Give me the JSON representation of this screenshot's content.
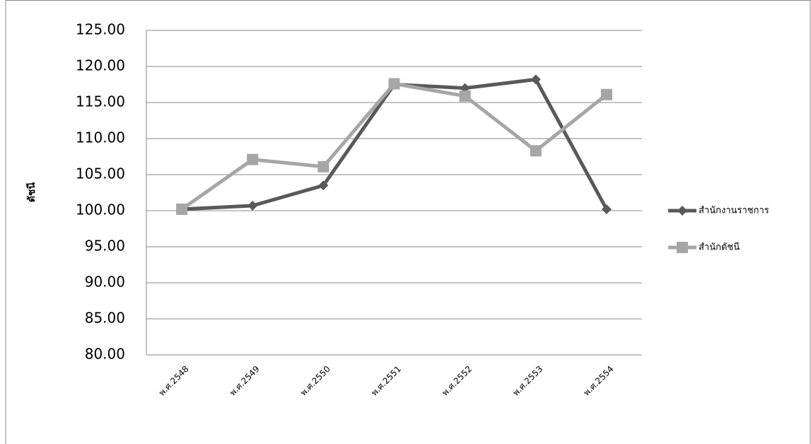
{
  "chart_data": {
    "type": "line",
    "y_label": "ดัชนี",
    "categories": [
      "พ.ศ.2548",
      "พ.ศ.2549",
      "พ.ศ.2550",
      "พ.ศ.2551",
      "พ.ศ.2552",
      "พ.ศ.2553",
      "พ.ศ.2554"
    ],
    "series": [
      {
        "name": "สำนักงานราชการ",
        "color": "#595959",
        "marker": "diamond",
        "values": [
          100.2,
          100.7,
          103.5,
          117.5,
          117.0,
          118.2,
          100.2
        ]
      },
      {
        "name": "สำนักดัชนี",
        "color": "#a6a6a6",
        "marker": "square",
        "values": [
          100.2,
          107.1,
          106.1,
          117.6,
          115.9,
          108.3,
          116.1
        ]
      }
    ],
    "ylim": [
      80,
      125
    ],
    "yticks": [
      {
        "value": 80,
        "label": "80.00"
      },
      {
        "value": 85,
        "label": "85.00"
      },
      {
        "value": 90,
        "label": "90.00"
      },
      {
        "value": 95,
        "label": "95.00"
      },
      {
        "value": 100,
        "label": "100.00"
      },
      {
        "value": 105,
        "label": "105.00"
      },
      {
        "value": 110,
        "label": "110.00"
      },
      {
        "value": 115,
        "label": "115.00"
      },
      {
        "value": 120,
        "label": "120.00"
      },
      {
        "value": 125,
        "label": "125.00"
      }
    ],
    "grid": true,
    "legend": "right"
  }
}
